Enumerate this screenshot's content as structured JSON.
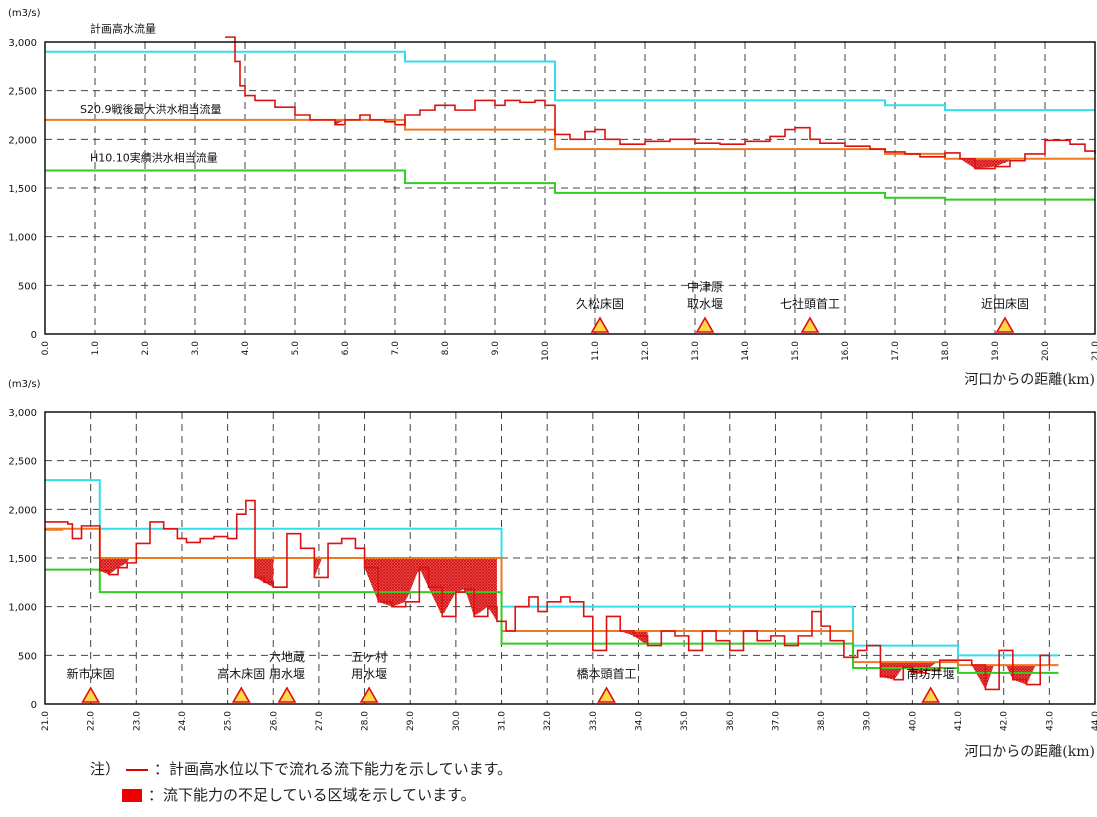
{
  "chart_data": [
    {
      "type": "line",
      "unit_label": "(m3/s)",
      "xlabel": "河口からの距離(km)",
      "xlim": [
        0,
        21
      ],
      "ylim": [
        0,
        3000
      ],
      "y_ticks": [
        "0",
        "500",
        "1,000",
        "1,500",
        "2,000",
        "2,500",
        "3,000"
      ],
      "x_ticks": [
        "0.0",
        "1.0",
        "2.0",
        "3.0",
        "4.0",
        "5.0",
        "6.0",
        "7.0",
        "8.0",
        "9.0",
        "10.0",
        "11.0",
        "12.0",
        "13.0",
        "14.0",
        "15.0",
        "16.0",
        "17.0",
        "18.0",
        "19.0",
        "20.0",
        "21.0"
      ],
      "grid": true,
      "step_series": [
        {
          "name": "計画高水流量",
          "color": "#33ddee",
          "x": [
            0,
            7.2,
            7.2,
            10.2,
            10.2,
            16.8,
            16.8,
            18.0,
            18.0,
            21.0
          ],
          "y": [
            2900,
            2900,
            2800,
            2800,
            2400,
            2400,
            2350,
            2350,
            2300,
            2300
          ]
        },
        {
          "name": "S20.9戦後最大洪水相当流量",
          "color": "#f07820",
          "x": [
            0,
            7.2,
            7.2,
            10.2,
            10.2,
            16.8,
            16.8,
            18.0,
            18.0,
            21.0
          ],
          "y": [
            2200,
            2200,
            2100,
            2100,
            1900,
            1900,
            1850,
            1850,
            1800,
            1800
          ]
        },
        {
          "name": "H10.10実績洪水相当流量",
          "color": "#33cc22",
          "x": [
            0,
            7.2,
            7.2,
            10.2,
            10.2,
            16.8,
            16.8,
            18.0,
            18.0,
            21.0
          ],
          "y": [
            1680,
            1680,
            1550,
            1550,
            1450,
            1450,
            1400,
            1400,
            1380,
            1380
          ]
        }
      ],
      "capacity": {
        "color": "#dd1111",
        "x": [
          3.6,
          3.8,
          3.9,
          4.0,
          4.2,
          4.6,
          5.0,
          5.3,
          5.8,
          6.0,
          6.3,
          6.5,
          6.8,
          7.0,
          7.2,
          7.5,
          7.8,
          8.2,
          8.6,
          9.0,
          9.2,
          9.5,
          9.8,
          10.0,
          10.2,
          10.5,
          10.8,
          11.0,
          11.2,
          11.5,
          12.0,
          12.5,
          13.0,
          13.5,
          14.0,
          14.5,
          14.8,
          15.0,
          15.3,
          15.5,
          16.0,
          16.5,
          16.8,
          17.2,
          17.5,
          18.0,
          18.3,
          18.6,
          19.0,
          19.3,
          19.6,
          20.0,
          20.5,
          20.8,
          21.0
        ],
        "y": [
          3050,
          2800,
          2550,
          2450,
          2400,
          2330,
          2250,
          2200,
          2150,
          2200,
          2250,
          2200,
          2180,
          2150,
          2250,
          2300,
          2350,
          2300,
          2400,
          2350,
          2400,
          2380,
          2400,
          2350,
          2050,
          2000,
          2080,
          2100,
          2000,
          1950,
          1980,
          2000,
          1960,
          1950,
          1980,
          2030,
          2100,
          2120,
          2000,
          1960,
          1930,
          1900,
          1870,
          1850,
          1820,
          1860,
          1800,
          1700,
          1720,
          1780,
          1850,
          1990,
          1950,
          1880,
          1850
        ]
      },
      "fills": [
        [
          5.8,
          6.3
        ],
        [
          18.3,
          19.3
        ]
      ],
      "annotations": [
        {
          "lines": [
            "計画高水流量"
          ],
          "x": 0.9,
          "y": 3100
        },
        {
          "lines": [
            "S20.9戦後最大洪水相当流量"
          ],
          "x": 0.7,
          "y": 2270
        },
        {
          "lines": [
            "H10.10実績洪水相当流量"
          ],
          "x": 0.9,
          "y": 1770
        }
      ],
      "structures": [
        {
          "lines": [
            "久松床固"
          ],
          "x": 11.1
        },
        {
          "lines": [
            "中津原",
            "取水堰"
          ],
          "x": 13.2
        },
        {
          "lines": [
            "七社頭首工"
          ],
          "x": 15.3
        },
        {
          "lines": [
            "近田床固"
          ],
          "x": 19.2
        }
      ]
    },
    {
      "type": "line",
      "unit_label": "(m3/s)",
      "xlabel": "河口からの距離(km)",
      "xlim": [
        21,
        44
      ],
      "ylim": [
        0,
        3000
      ],
      "y_ticks": [
        "0",
        "500",
        "1,000",
        "1,500",
        "2,000",
        "2,500",
        "3,000"
      ],
      "x_ticks": [
        "21.0",
        "22.0",
        "23.0",
        "24.0",
        "25.0",
        "26.0",
        "27.0",
        "28.0",
        "29.0",
        "30.0",
        "31.0",
        "32.0",
        "33.0",
        "34.0",
        "35.0",
        "36.0",
        "37.0",
        "38.0",
        "39.0",
        "40.0",
        "41.0",
        "42.0",
        "43.0",
        "44.0"
      ],
      "grid": true,
      "step_series": [
        {
          "name": "計画高水流量",
          "color": "#33ddee",
          "x": [
            21.0,
            22.2,
            22.2,
            31.0,
            31.0,
            38.7,
            38.7,
            41.0,
            41.0,
            43.2
          ],
          "y": [
            2300,
            2300,
            1800,
            1800,
            1000,
            1000,
            600,
            600,
            500,
            500
          ]
        },
        {
          "name": "S20.9戦後最大洪水相当流量",
          "color": "#f07820",
          "x": [
            21.0,
            22.2,
            22.2,
            31.0,
            31.0,
            38.7,
            38.7,
            41.0,
            41.0,
            43.2
          ],
          "y": [
            1800,
            1800,
            1500,
            1500,
            750,
            750,
            430,
            430,
            400,
            400
          ]
        },
        {
          "name": "H10.10実績洪水相当流量",
          "color": "#33cc22",
          "x": [
            21.0,
            22.2,
            22.2,
            31.0,
            31.0,
            38.7,
            38.7,
            41.0,
            41.0,
            43.2
          ],
          "y": [
            1380,
            1380,
            1150,
            1150,
            620,
            620,
            370,
            370,
            320,
            320
          ]
        },
        {
          "name": "",
          "color": "#f07820",
          "x": [
            21.0,
            21.4
          ],
          "y": [
            1790,
            1790
          ]
        }
      ],
      "capacity": {
        "color": "#dd1111",
        "x": [
          21.0,
          21.5,
          21.6,
          21.8,
          22.2,
          22.4,
          22.6,
          22.8,
          23.0,
          23.3,
          23.6,
          23.9,
          24.1,
          24.4,
          24.7,
          25.0,
          25.2,
          25.4,
          25.6,
          25.8,
          26.0,
          26.3,
          26.6,
          26.9,
          27.2,
          27.5,
          27.8,
          28.0,
          28.3,
          28.6,
          28.9,
          29.2,
          29.4,
          29.7,
          30.0,
          30.2,
          30.4,
          30.7,
          30.9,
          31.1,
          31.3,
          31.6,
          31.8,
          32.0,
          32.3,
          32.5,
          32.8,
          33.0,
          33.3,
          33.6,
          33.9,
          34.2,
          34.5,
          34.8,
          35.1,
          35.4,
          35.7,
          36.0,
          36.3,
          36.6,
          36.9,
          37.2,
          37.5,
          37.8,
          38.0,
          38.2,
          38.5,
          38.8,
          39.0,
          39.3,
          39.6,
          39.8,
          40.0,
          40.3,
          40.6,
          41.0,
          41.3,
          41.6,
          41.9,
          42.2,
          42.5,
          42.8,
          43.0
        ],
        "y": [
          1870,
          1850,
          1700,
          1830,
          1370,
          1330,
          1400,
          1450,
          1650,
          1870,
          1800,
          1700,
          1660,
          1700,
          1720,
          1700,
          1950,
          2090,
          1300,
          1250,
          1200,
          1750,
          1600,
          1300,
          1650,
          1700,
          1600,
          1400,
          1050,
          1000,
          1050,
          1400,
          1200,
          900,
          1150,
          1180,
          900,
          1000,
          850,
          750,
          1000,
          1100,
          950,
          1050,
          1100,
          1050,
          900,
          550,
          900,
          750,
          700,
          600,
          750,
          700,
          550,
          750,
          650,
          550,
          750,
          650,
          700,
          600,
          700,
          950,
          800,
          650,
          480,
          550,
          600,
          280,
          250,
          380,
          320,
          350,
          450,
          450,
          400,
          150,
          550,
          250,
          200,
          500,
          400
        ]
      },
      "fills": [
        [
          22.2,
          22.9
        ],
        [
          25.6,
          26.0
        ],
        [
          26.9,
          27.2
        ],
        [
          28.0,
          30.9
        ],
        [
          33.6,
          34.2
        ],
        [
          39.3,
          40.6
        ],
        [
          41.3,
          42.8
        ]
      ],
      "annotations": [],
      "structures": [
        {
          "lines": [
            "新市床固"
          ],
          "x": 22.0
        },
        {
          "lines": [
            "高木床固"
          ],
          "x": 25.3
        },
        {
          "lines": [
            "六地蔵",
            "用水堰"
          ],
          "x": 26.3
        },
        {
          "lines": [
            "五ヶ村",
            "用水堰"
          ],
          "x": 28.1
        },
        {
          "lines": [
            "橋本頭首工"
          ],
          "x": 33.3
        },
        {
          "lines": [
            "南坊井堰"
          ],
          "x": 40.4
        }
      ]
    }
  ],
  "legend_note": {
    "prefix": "注）",
    "line_text": "：計画高水位以下で流れる流下能力を示しています。",
    "box_text": "：流下能力の不足している区域を示しています。"
  }
}
